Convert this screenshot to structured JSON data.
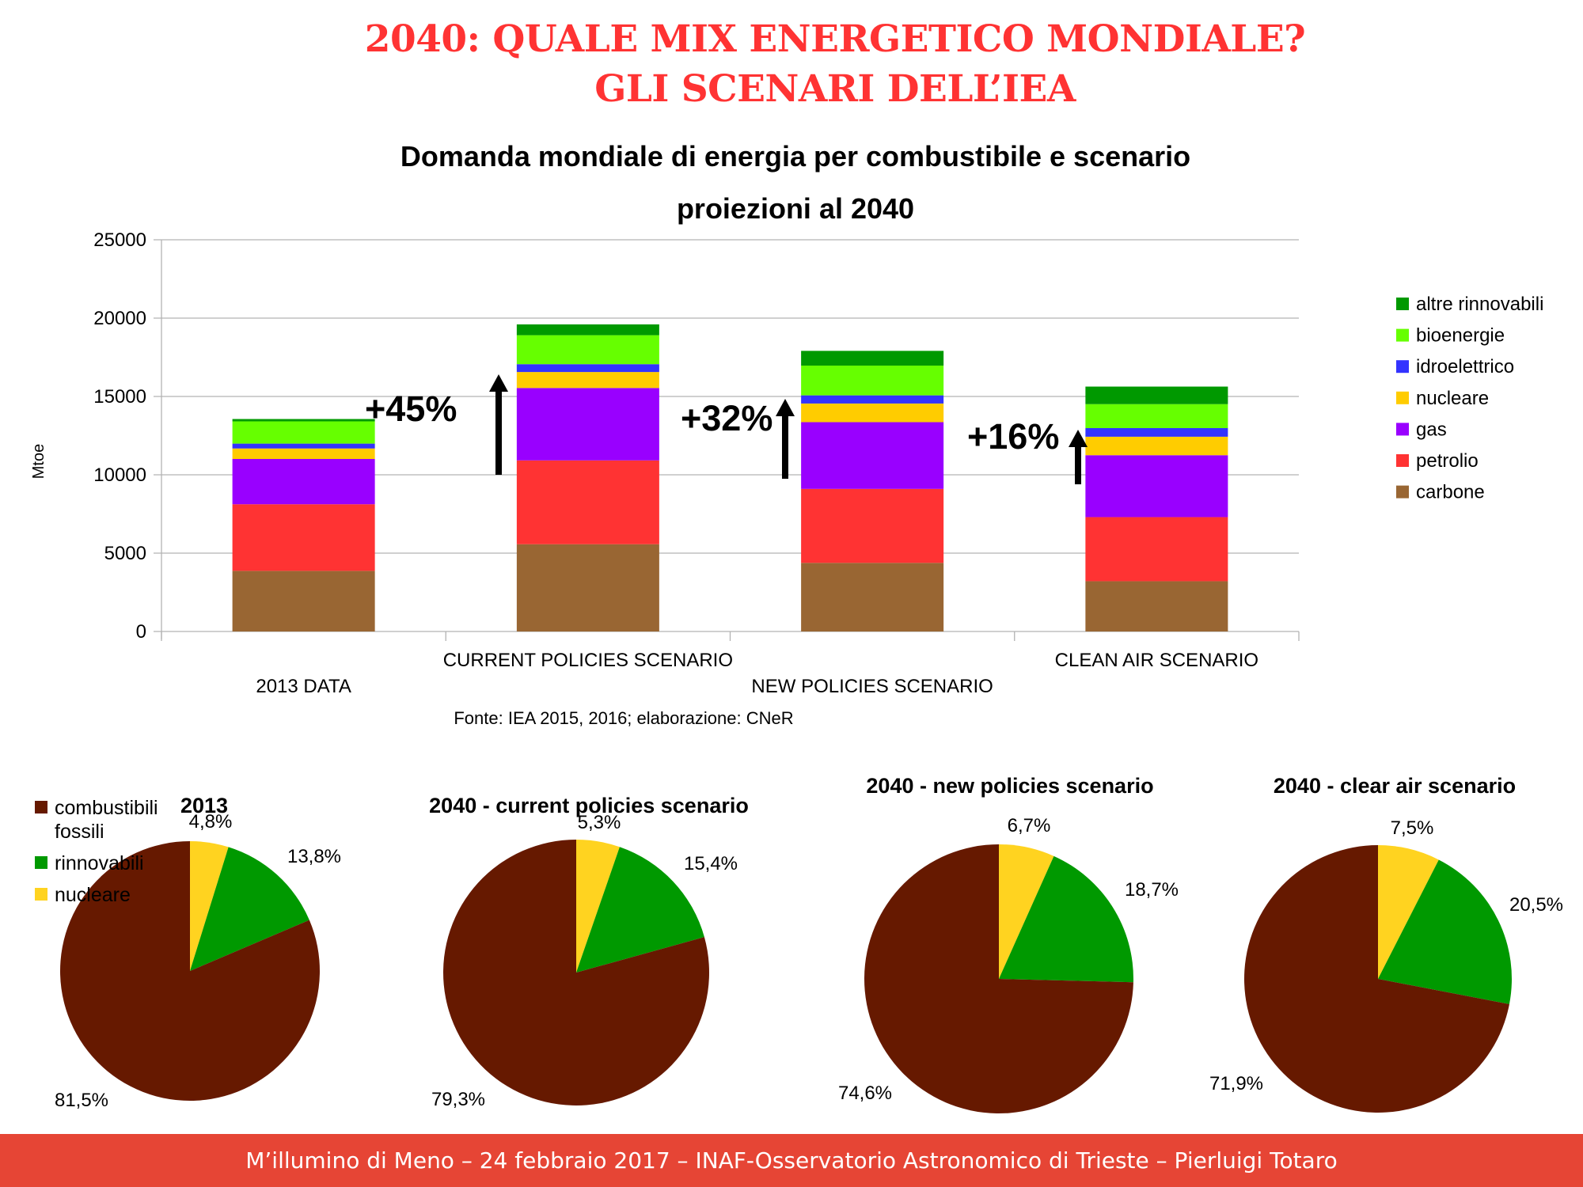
{
  "slide": {
    "title_line1": "2040: QUALE MIX ENERGETICO MONDIALE?",
    "title_line2": "GLI SCENARI DELL’IEA",
    "footer": "M’illumino di Meno – 24 febbraio 2017 – INAF-Osservatorio Astronomico di Trieste – Pierluigi Totaro",
    "accent_color": "#ff3333",
    "footer_color": "#e64535"
  },
  "chart_data": [
    {
      "type": "bar",
      "stacked": true,
      "title": "Domanda mondiale di energia per combustibile e scenario",
      "subtitle": "proiezioni al 2040",
      "xlabel": "",
      "ylabel": "Mtoe",
      "ylim": [
        0,
        25000
      ],
      "yticks": [
        0,
        5000,
        10000,
        15000,
        20000,
        25000
      ],
      "ytick_labels": [
        "0",
        "5000",
        "10000",
        "15000",
        "20000",
        "25000"
      ],
      "grid": true,
      "legend_position": "right",
      "source": "Fonte: IEA 2015, 2016; elaborazione: CNeR",
      "categories": [
        "2013 DATA",
        "CURRENT POLICIES SCENARIO",
        "NEW POLICIES SCENARIO",
        "CLEAN AIR SCENARIO"
      ],
      "series": [
        {
          "name": "carbone",
          "color": "#996633",
          "values": [
            3870,
            5570,
            4380,
            3210
          ]
        },
        {
          "name": "petrolio",
          "color": "#ff3333",
          "values": [
            4250,
            5350,
            4720,
            4090
          ]
        },
        {
          "name": "gas",
          "color": "#9900ff",
          "values": [
            2890,
            4620,
            4260,
            3950
          ]
        },
        {
          "name": "nucleare",
          "color": "#ffcc00",
          "values": [
            670,
            1020,
            1190,
            1180
          ]
        },
        {
          "name": "idroelettrico",
          "color": "#3333ff",
          "values": [
            310,
            500,
            520,
            550
          ]
        },
        {
          "name": "bioenergie",
          "color": "#66ff00",
          "values": [
            1420,
            1850,
            1900,
            1530
          ]
        },
        {
          "name": "altre rinnovabili",
          "color": "#009900",
          "values": [
            150,
            690,
            940,
            1120
          ]
        }
      ],
      "annotations": [
        {
          "text": "+45%",
          "arrow": "up"
        },
        {
          "text": "+32%",
          "arrow": "up"
        },
        {
          "text": "+16%",
          "arrow": "up"
        }
      ]
    },
    {
      "type": "pie",
      "title": "2013",
      "labels": [
        "combustibili fossili",
        "rinnovabili",
        "nucleare"
      ],
      "colors": [
        "#661900",
        "#009900",
        "#ffd320"
      ],
      "values": [
        81.5,
        13.8,
        4.8
      ],
      "value_labels": [
        "81,5%",
        "13,8%",
        "4,8%"
      ],
      "legend": {
        "position": "top-left",
        "entries": [
          {
            "line1": "combustibili",
            "line2": "fossili",
            "color": "#661900"
          },
          {
            "line1": "rinnovabili",
            "color": "#009900"
          },
          {
            "line1": "nucleare",
            "color": "#ffd320"
          }
        ]
      }
    },
    {
      "type": "pie",
      "title": "2040 - current policies scenario",
      "labels": [
        "combustibili fossili",
        "rinnovabili",
        "nucleare"
      ],
      "colors": [
        "#661900",
        "#009900",
        "#ffd320"
      ],
      "values": [
        79.3,
        15.4,
        5.3
      ],
      "value_labels": [
        "79,3%",
        "15,4%",
        "5,3%"
      ]
    },
    {
      "type": "pie",
      "title": "2040 - new  policies scenario",
      "labels": [
        "combustibili fossili",
        "rinnovabili",
        "nucleare"
      ],
      "colors": [
        "#661900",
        "#009900",
        "#ffd320"
      ],
      "values": [
        74.6,
        18.7,
        6.7
      ],
      "value_labels": [
        "74,6%",
        "18,7%",
        "6,7%"
      ]
    },
    {
      "type": "pie",
      "title": "2040 - clear air scenario",
      "labels": [
        "combustibili fossili",
        "rinnovabili",
        "nucleare"
      ],
      "colors": [
        "#661900",
        "#009900",
        "#ffd320"
      ],
      "values": [
        71.9,
        20.5,
        7.5
      ],
      "value_labels": [
        "71,9%",
        "20,5%",
        "7,5%"
      ]
    }
  ]
}
